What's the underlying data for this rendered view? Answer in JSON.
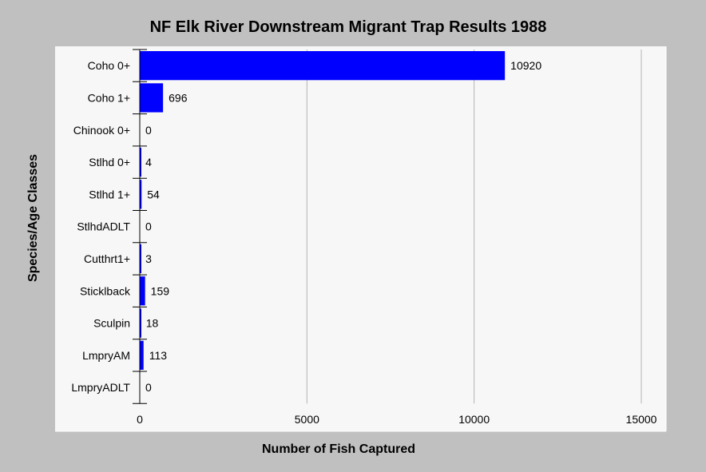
{
  "chart_data": {
    "type": "bar",
    "orientation": "horizontal",
    "title": "NF Elk River Downstream Migrant Trap Results 1988",
    "xlabel": "Number of Fish Captured",
    "ylabel": "Species/Age Classes",
    "categories": [
      "Coho 0+",
      "Coho 1+",
      "Chinook 0+",
      "Stlhd 0+",
      "Stlhd 1+",
      "StlhdADLT",
      "Cutthrt1+",
      "Sticklback",
      "Sculpin",
      "LmpryAM",
      "LmpryADLT"
    ],
    "values": [
      10920,
      696,
      0,
      4,
      54,
      0,
      3,
      159,
      18,
      113,
      0
    ],
    "data_labels": [
      "10920",
      "696",
      "0",
      "4",
      "54",
      "0",
      "3",
      "159",
      "18",
      "113",
      "0"
    ],
    "xlim": [
      0,
      15000
    ],
    "xticks": [
      0,
      5000,
      10000,
      15000
    ],
    "xtick_labels": [
      "0",
      "5000",
      "10000",
      "15000"
    ],
    "grid": "vertical",
    "legend": "none",
    "colors": {
      "bar": "#0000ff",
      "background": "#c0c0c0",
      "plot_background": "#f7f7f7",
      "grid": "#b4b4b4",
      "text": "#000000"
    }
  }
}
